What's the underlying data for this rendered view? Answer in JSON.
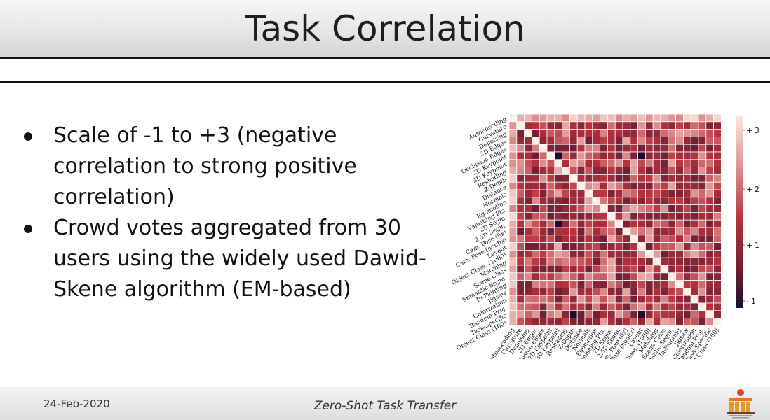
{
  "slide": {
    "title": "Task Correlation",
    "bullets": [
      "Scale of -1 to +3 (negative correlation to strong positive correlation)",
      "Crowd votes aggregated from 30 users using the widely used Dawid-Skene algorithm (EM-based)"
    ],
    "footer": {
      "date": "24-Feb-2020",
      "center": "Zero-Shot Task Transfer"
    }
  },
  "chart_data": {
    "type": "heatmap",
    "tasks": [
      "Autoencoding",
      "Curvature",
      "Denoising",
      "2D Edges",
      "Occlusion Edges",
      "2D Keypoint",
      "3D Keypoint",
      "Reshading",
      "Z-Depth",
      "Distance",
      "Normals",
      "Egomotion",
      "Vanishing Pts.",
      "2D Segm.",
      "2.5D Segm.",
      "Cam. Pose (fix)",
      "Cam. Pose (nonfix)",
      "Layout",
      "Object Class. (1000)",
      "Matching",
      "Scene Class",
      "Semantic Segm.",
      "In-Painting",
      "Jigsaw",
      "Colorization",
      "Random Proj.",
      "Task-Specific",
      "Object Class (100)"
    ],
    "colorbar": {
      "ticks": [
        "+ 3",
        "+ 2",
        "+ 1",
        "- 1"
      ],
      "range": [
        -1,
        3
      ]
    },
    "colors": {
      "low": "#1b0c2e",
      "mid": "#b8323c",
      "high": "#fbe7dd",
      "diagonal": "#fdf0ea"
    }
  }
}
